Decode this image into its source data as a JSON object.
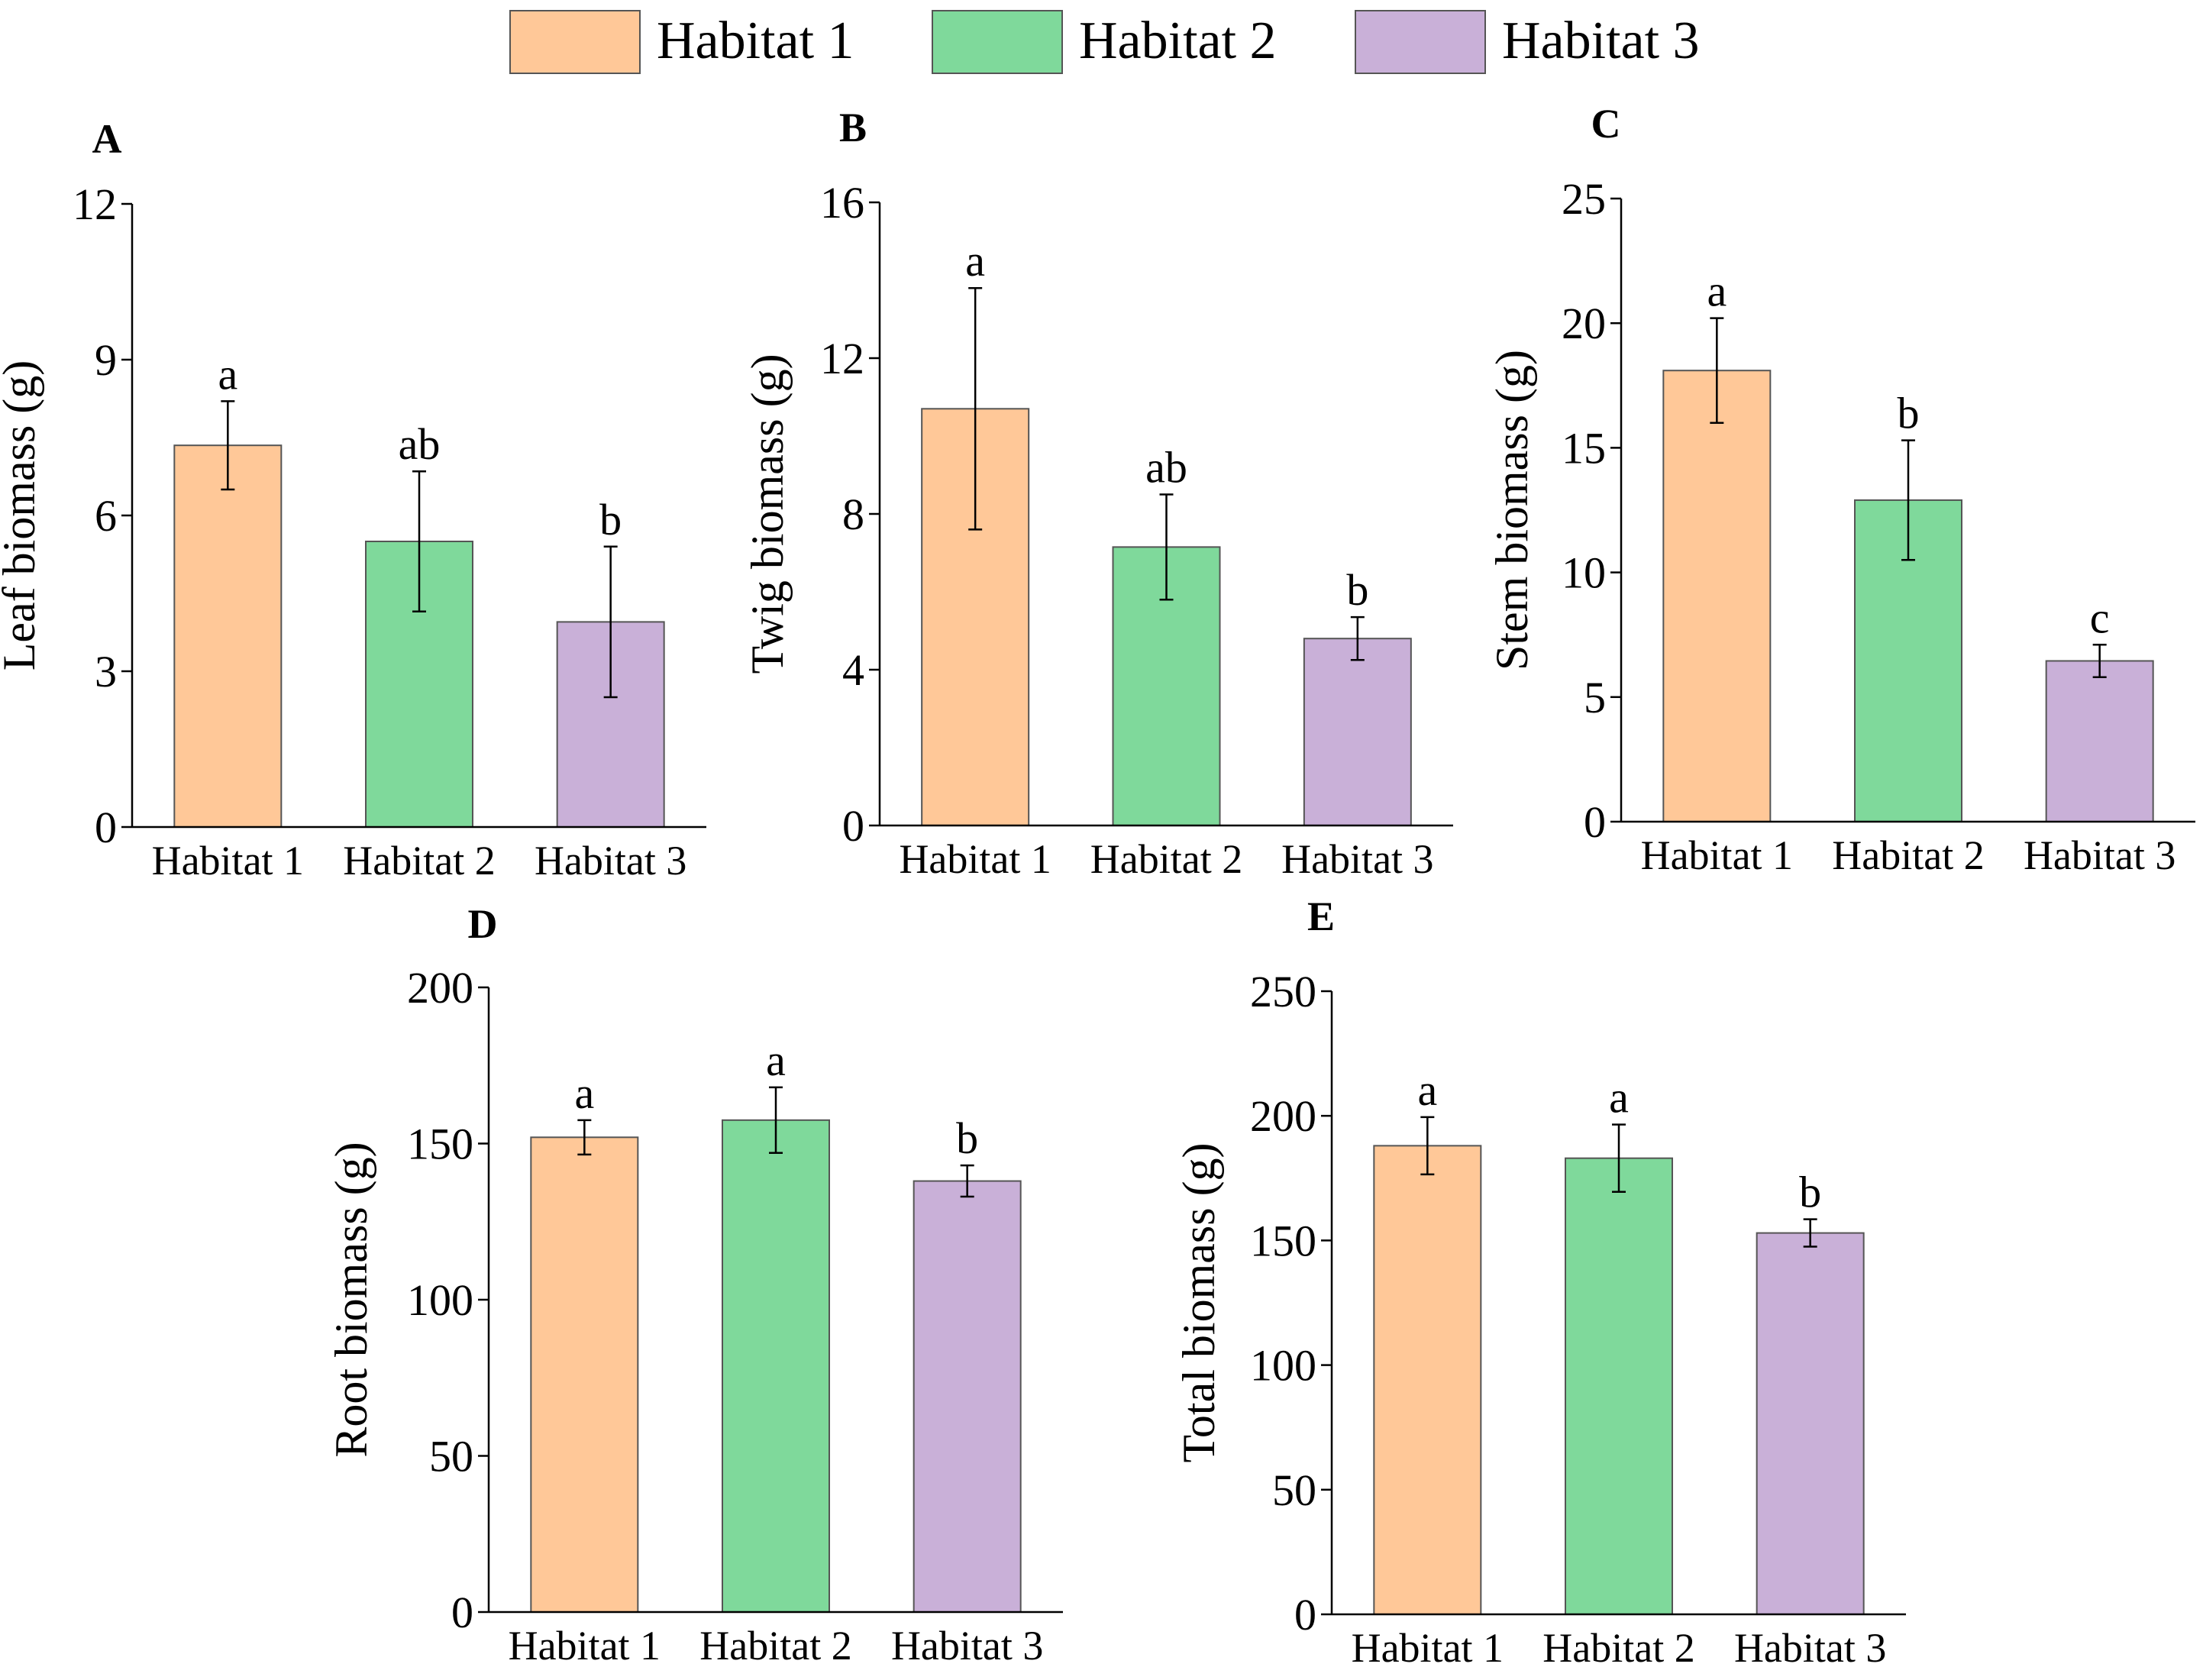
{
  "legend": {
    "items": [
      {
        "label": "Habitat 1",
        "color": "#FFC898"
      },
      {
        "label": "Habitat 2",
        "color": "#7FD99B"
      },
      {
        "label": "Habitat 3",
        "color": "#C9B0D8"
      }
    ]
  },
  "chart_data": [
    {
      "type": "bar",
      "panel": "A",
      "categories": [
        "Habitat 1",
        "Habitat 2",
        "Habitat 3"
      ],
      "values": [
        7.35,
        5.5,
        3.95
      ],
      "errors": [
        0.85,
        1.35,
        1.45
      ],
      "letters": [
        "a",
        "ab",
        "b"
      ],
      "ylabel": "Leaf biomass (g)",
      "ylim": [
        0,
        12
      ],
      "yticks": [
        0,
        3,
        6,
        9,
        12
      ]
    },
    {
      "type": "bar",
      "panel": "B",
      "categories": [
        "Habitat 1",
        "Habitat 2",
        "Habitat 3"
      ],
      "values": [
        10.7,
        7.15,
        4.8
      ],
      "errors": [
        3.1,
        1.35,
        0.55
      ],
      "letters": [
        "a",
        "ab",
        "b"
      ],
      "ylabel": "Twig biomass (g)",
      "ylim": [
        0,
        16
      ],
      "yticks": [
        0,
        4,
        8,
        12,
        16
      ]
    },
    {
      "type": "bar",
      "panel": "C",
      "categories": [
        "Habitat 1",
        "Habitat 2",
        "Habitat 3"
      ],
      "values": [
        18.1,
        12.9,
        6.45
      ],
      "errors": [
        2.1,
        2.4,
        0.65
      ],
      "letters": [
        "a",
        "b",
        "c"
      ],
      "ylabel": "Stem biomass (g)",
      "ylim": [
        0,
        25
      ],
      "yticks": [
        0,
        5,
        10,
        15,
        20,
        25
      ]
    },
    {
      "type": "bar",
      "panel": "D",
      "categories": [
        "Habitat 1",
        "Habitat 2",
        "Habitat 3"
      ],
      "values": [
        152,
        157.5,
        138
      ],
      "errors": [
        5.5,
        10.5,
        5
      ],
      "letters": [
        "a",
        "a",
        "b"
      ],
      "ylabel": "Root biomass (g)",
      "ylim": [
        0,
        200
      ],
      "yticks": [
        0,
        50,
        100,
        150,
        200
      ]
    },
    {
      "type": "bar",
      "panel": "E",
      "categories": [
        "Habitat 1",
        "Habitat 2",
        "Habitat 3"
      ],
      "values": [
        188,
        183,
        153
      ],
      "errors": [
        11.5,
        13.5,
        5.5
      ],
      "letters": [
        "a",
        "a",
        "b"
      ],
      "ylabel": "Total biomass (g)",
      "ylim": [
        0,
        250
      ],
      "yticks": [
        0,
        50,
        100,
        150,
        200,
        250
      ]
    }
  ]
}
